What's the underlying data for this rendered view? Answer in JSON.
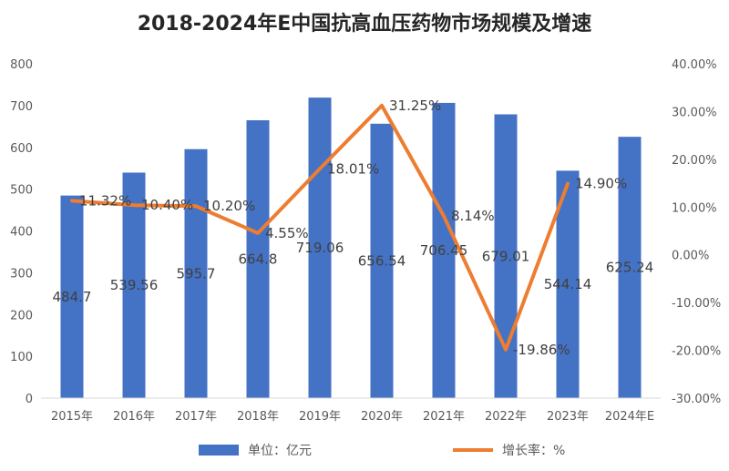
{
  "chart_data": {
    "type": "bar",
    "title": "2018-2024年E中国抗高血压药物市场规模及增速",
    "categories": [
      "2015年",
      "2016年",
      "2017年",
      "2018年",
      "2019年",
      "2020年",
      "2021年",
      "2022年",
      "2023年",
      "2024年E"
    ],
    "series": [
      {
        "name": "单位：亿元",
        "type": "bar",
        "axis": "left",
        "color": "#4472C4",
        "values": [
          484.7,
          539.56,
          595.7,
          664.8,
          719.06,
          656.54,
          706.45,
          679.01,
          544.14,
          625.24
        ],
        "labels": [
          "484.7",
          "539.56",
          "595.7",
          "664.8",
          "719.06",
          "656.54",
          "706.45",
          "679.01",
          "544.14",
          "625.24"
        ]
      },
      {
        "name": "增长率：%",
        "type": "line",
        "axis": "right",
        "color": "#ED7D31",
        "values": [
          11.32,
          10.4,
          10.2,
          4.55,
          18.01,
          31.25,
          8.14,
          -19.86,
          14.9,
          null
        ],
        "labels": [
          "11.32%",
          "10.40%",
          "10.20%",
          "4.55%",
          "18.01%",
          "31.25%",
          "8.14%",
          "-19.86%",
          "14.90%",
          null
        ]
      }
    ],
    "y_left": {
      "ylim": [
        0,
        800
      ],
      "ticks": [
        0,
        100,
        200,
        300,
        400,
        500,
        600,
        700,
        800
      ],
      "tick_labels": [
        "0",
        "100",
        "200",
        "300",
        "400",
        "500",
        "600",
        "700",
        "800"
      ]
    },
    "y_right": {
      "ylim": [
        -30,
        40
      ],
      "ticks": [
        -30,
        -20,
        -10,
        0,
        10,
        20,
        30,
        40
      ],
      "tick_labels": [
        "-30.00%",
        "-20.00%",
        "-10.00%",
        "0.00%",
        "10.00%",
        "20.00%",
        "30.00%",
        "40.00%"
      ]
    },
    "grid": false,
    "legend_position": "bottom"
  }
}
